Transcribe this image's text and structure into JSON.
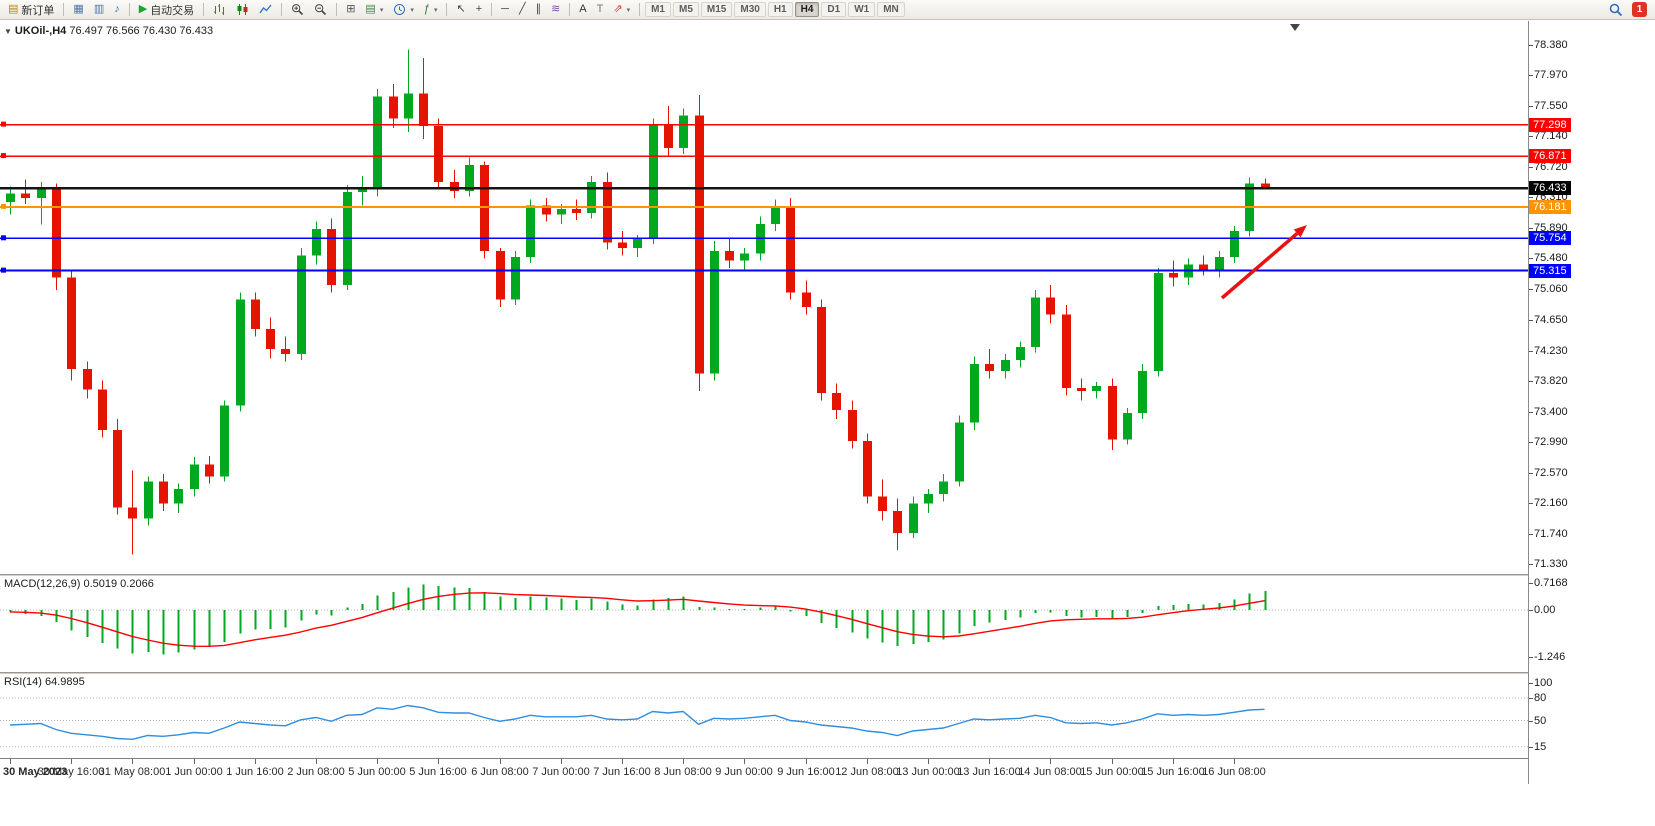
{
  "colors": {
    "up": "#00a81f",
    "down": "#e51400",
    "macd_hist": "#00a81f",
    "macd_signal": "#ff0000",
    "rsi_line": "#2f8ee0",
    "arrow": "#e81212",
    "axis_text": "#1a1a1a"
  },
  "toolbar": {
    "groups": [
      {
        "items": [
          {
            "name": "new-order-button",
            "glyph": "▤",
            "glyph_color": "#b8860b",
            "label": "新订单"
          }
        ]
      },
      {
        "items": [
          {
            "name": "market-watch-button",
            "glyph": "▦",
            "glyph_color": "#4f75a3"
          },
          {
            "name": "navigator-button",
            "glyph": "▥",
            "glyph_color": "#4f75a3"
          },
          {
            "name": "sound-button",
            "glyph": "♪",
            "glyph_color": "#2f6fbe"
          }
        ]
      },
      {
        "items": [
          {
            "name": "auto-trading-button",
            "glyph": "▶",
            "glyph_color": "#17a62e",
            "label": "自动交易"
          }
        ]
      },
      {
        "items": [
          {
            "name": "bar-chart-type-button",
            "icon": "bars"
          },
          {
            "name": "candlestick-chart-type-button",
            "icon": "candles"
          },
          {
            "name": "line-chart-type-button",
            "icon": "linechart"
          }
        ]
      },
      {
        "items": [
          {
            "name": "zoom-in-button",
            "icon": "zoom-in"
          },
          {
            "name": "zoom-out-button",
            "icon": "zoom-out"
          }
        ]
      },
      {
        "items": [
          {
            "name": "tile-windows-button",
            "glyph": "⊞",
            "glyph_color": "#555555"
          },
          {
            "name": "new-chart-button",
            "glyph": "▤",
            "glyph_color": "#3c8c3c",
            "dropdown": true
          },
          {
            "name": "period-clock-button",
            "icon": "clock",
            "dropdown": true
          },
          {
            "name": "indicators-button",
            "glyph": "ƒ",
            "glyph_color": "#2e7d32",
            "dropdown": true
          }
        ]
      },
      {
        "items": [
          {
            "name": "cursor-button",
            "glyph": "↖",
            "glyph_color": "#444444"
          },
          {
            "name": "crosshair-button",
            "glyph": "+",
            "glyph_color": "#444444"
          }
        ]
      },
      {
        "items": [
          {
            "name": "horizontal-line-button",
            "glyph": "─",
            "glyph_color": "#444444"
          },
          {
            "name": "trendline-button",
            "glyph": "╱",
            "glyph_color": "#444444"
          },
          {
            "name": "channel-button",
            "glyph": "∥",
            "glyph_color": "#444444"
          },
          {
            "name": "fibonacci-button",
            "glyph": "≋",
            "glyph_color": "#7a4fa3"
          }
        ]
      },
      {
        "items": [
          {
            "name": "text-button",
            "glyph": "A",
            "glyph_color": "#333333"
          },
          {
            "name": "text-label-button",
            "glyph": "T",
            "glyph_color": "#777777"
          },
          {
            "name": "arrows-button",
            "glyph": "⇗",
            "glyph_color": "#c23b3b",
            "dropdown": true
          }
        ]
      }
    ],
    "timeframes": [
      "M1",
      "M5",
      "M15",
      "M30",
      "H1",
      "H4",
      "D1",
      "W1",
      "MN"
    ],
    "active_timeframe": "H4",
    "notification_badge": "1"
  },
  "chart": {
    "symbol_period": "UKOil-,H4",
    "ohlc_text": "76.497 76.566 76.430 76.433",
    "expand_glyph": "▼"
  },
  "chart_data": {
    "type": "candlestick",
    "symbol": "UKOil-",
    "timeframe": "H4",
    "current_price": "76.433",
    "price_range": [
      71.194,
      78.706
    ],
    "y_axis_ticks": [
      "78.380",
      "77.970",
      "77.550",
      "77.140",
      "76.720",
      "76.310",
      "75.890",
      "75.480",
      "75.060",
      "74.650",
      "74.230",
      "73.820",
      "73.400",
      "72.990",
      "72.570",
      "72.160",
      "71.740",
      "71.330"
    ],
    "x_labels": [
      "30 May 2023",
      "30 May 16:00",
      "31 May 08:00",
      "1 Jun 00:00",
      "1 Jun 16:00",
      "2 Jun 08:00",
      "5 Jun 00:00",
      "5 Jun 16:00",
      "6 Jun 08:00",
      "7 Jun 00:00",
      "7 Jun 16:00",
      "8 Jun 08:00",
      "9 Jun 00:00",
      "9 Jun 16:00",
      "12 Jun 08:00",
      "13 Jun 00:00",
      "13 Jun 16:00",
      "14 Jun 08:00",
      "15 Jun 00:00",
      "15 Jun 16:00",
      "16 Jun 08:00"
    ],
    "levels": [
      {
        "price": 77.298,
        "label": "77.298",
        "color": "#ff0000",
        "width": 1.6,
        "handle": true
      },
      {
        "price": 76.871,
        "label": "76.871",
        "color": "#ff0000",
        "width": 1.6,
        "handle": true
      },
      {
        "price": 76.433,
        "label": "76.433",
        "color": "#151515",
        "width": 2.4,
        "handle": false
      },
      {
        "price": 76.181,
        "label": "76.181",
        "color": "#ff9400",
        "width": 2.0,
        "handle": true
      },
      {
        "price": 75.754,
        "label": "75.754",
        "color": "#0000ff",
        "width": 1.8,
        "handle": true
      },
      {
        "price": 75.315,
        "label": "75.315",
        "color": "#0000ff",
        "width": 1.8,
        "handle": true
      }
    ],
    "annotations": [
      {
        "type": "arrow",
        "color": "#e81212",
        "from": [
          1222,
          277
        ],
        "to": [
          1307,
          204
        ],
        "width": 3.5
      }
    ],
    "ohlc": [
      [
        76.25,
        76.46,
        76.08,
        76.36
      ],
      [
        76.36,
        76.55,
        76.22,
        76.3
      ],
      [
        76.3,
        76.52,
        75.94,
        76.45
      ],
      [
        76.45,
        76.5,
        75.05,
        75.22
      ],
      [
        75.22,
        75.3,
        73.82,
        73.98
      ],
      [
        73.98,
        74.08,
        73.58,
        73.7
      ],
      [
        73.7,
        73.82,
        73.05,
        73.15
      ],
      [
        73.15,
        73.3,
        72.0,
        72.1
      ],
      [
        72.1,
        72.6,
        71.46,
        71.95
      ],
      [
        71.95,
        72.52,
        71.85,
        72.45
      ],
      [
        72.45,
        72.55,
        72.05,
        72.15
      ],
      [
        72.15,
        72.42,
        72.02,
        72.35
      ],
      [
        72.35,
        72.78,
        72.25,
        72.68
      ],
      [
        72.68,
        72.8,
        72.42,
        72.52
      ],
      [
        72.52,
        73.55,
        72.45,
        73.48
      ],
      [
        73.48,
        75.02,
        73.4,
        74.92
      ],
      [
        74.92,
        75.02,
        74.42,
        74.52
      ],
      [
        74.52,
        74.68,
        74.12,
        74.25
      ],
      [
        74.25,
        74.42,
        74.08,
        74.18
      ],
      [
        74.18,
        75.62,
        74.1,
        75.52
      ],
      [
        75.52,
        75.98,
        75.4,
        75.88
      ],
      [
        75.88,
        76.02,
        75.02,
        75.12
      ],
      [
        75.12,
        76.48,
        75.05,
        76.38
      ],
      [
        76.38,
        76.6,
        76.2,
        76.42
      ],
      [
        76.42,
        77.78,
        76.32,
        77.68
      ],
      [
        77.68,
        77.85,
        77.25,
        77.38
      ],
      [
        77.38,
        78.32,
        77.2,
        77.72
      ],
      [
        77.72,
        78.2,
        77.1,
        77.28
      ],
      [
        77.28,
        77.38,
        76.42,
        76.52
      ],
      [
        76.52,
        76.68,
        76.3,
        76.4
      ],
      [
        76.4,
        76.85,
        76.32,
        76.75
      ],
      [
        76.75,
        76.8,
        75.48,
        75.58
      ],
      [
        75.58,
        75.62,
        74.82,
        74.92
      ],
      [
        74.92,
        75.58,
        74.85,
        75.5
      ],
      [
        75.5,
        76.28,
        75.42,
        76.2
      ],
      [
        76.2,
        76.3,
        75.98,
        76.08
      ],
      [
        76.08,
        76.22,
        75.95,
        76.15
      ],
      [
        76.15,
        76.28,
        76.0,
        76.1
      ],
      [
        76.1,
        76.6,
        76.02,
        76.52
      ],
      [
        76.52,
        76.65,
        75.6,
        75.7
      ],
      [
        75.7,
        75.85,
        75.52,
        75.62
      ],
      [
        75.62,
        75.8,
        75.5,
        75.75
      ],
      [
        75.75,
        77.38,
        75.68,
        77.3
      ],
      [
        77.3,
        77.55,
        76.88,
        76.98
      ],
      [
        76.98,
        77.52,
        76.9,
        77.42
      ],
      [
        77.42,
        77.7,
        73.68,
        73.92
      ],
      [
        73.92,
        75.72,
        73.82,
        75.58
      ],
      [
        75.58,
        75.75,
        75.35,
        75.45
      ],
      [
        75.45,
        75.62,
        75.32,
        75.55
      ],
      [
        75.55,
        76.05,
        75.45,
        75.95
      ],
      [
        75.95,
        76.28,
        75.85,
        76.18
      ],
      [
        76.18,
        76.3,
        74.92,
        75.02
      ],
      [
        75.02,
        75.18,
        74.72,
        74.82
      ],
      [
        74.82,
        74.92,
        73.55,
        73.65
      ],
      [
        73.65,
        73.78,
        73.3,
        73.42
      ],
      [
        73.42,
        73.55,
        72.9,
        73.0
      ],
      [
        73.0,
        73.1,
        72.15,
        72.25
      ],
      [
        72.25,
        72.48,
        71.92,
        72.05
      ],
      [
        72.05,
        72.22,
        71.52,
        71.75
      ],
      [
        71.75,
        72.25,
        71.68,
        72.15
      ],
      [
        72.15,
        72.35,
        72.02,
        72.28
      ],
      [
        72.28,
        72.55,
        72.18,
        72.45
      ],
      [
        72.45,
        73.35,
        72.38,
        73.25
      ],
      [
        73.25,
        74.15,
        73.15,
        74.05
      ],
      [
        74.05,
        74.25,
        73.85,
        73.95
      ],
      [
        73.95,
        74.18,
        73.85,
        74.1
      ],
      [
        74.1,
        74.35,
        74.0,
        74.28
      ],
      [
        74.28,
        75.05,
        74.2,
        74.95
      ],
      [
        74.95,
        75.12,
        74.6,
        74.72
      ],
      [
        74.72,
        74.85,
        73.62,
        73.72
      ],
      [
        73.72,
        73.85,
        73.55,
        73.68
      ],
      [
        73.68,
        73.8,
        73.58,
        73.75
      ],
      [
        73.75,
        73.85,
        72.88,
        73.02
      ],
      [
        73.02,
        73.45,
        72.95,
        73.38
      ],
      [
        73.38,
        74.05,
        73.3,
        73.95
      ],
      [
        73.95,
        75.35,
        73.88,
        75.28
      ],
      [
        75.28,
        75.45,
        75.1,
        75.22
      ],
      [
        75.22,
        75.48,
        75.12,
        75.4
      ],
      [
        75.4,
        75.52,
        75.25,
        75.32
      ],
      [
        75.32,
        75.58,
        75.22,
        75.5
      ],
      [
        75.5,
        75.92,
        75.42,
        75.85
      ],
      [
        75.85,
        76.58,
        75.78,
        76.5
      ],
      [
        76.497,
        76.566,
        76.43,
        76.433
      ]
    ],
    "indicators": {
      "macd": {
        "label": "MACD(12,26,9) 0.5019 0.2066",
        "ticks": [
          "0.7168",
          "0.00",
          "-1.246"
        ],
        "histogram": [
          -0.05,
          -0.1,
          -0.16,
          -0.32,
          -0.55,
          -0.72,
          -0.88,
          -1.02,
          -1.15,
          -1.12,
          -1.18,
          -1.13,
          -1.05,
          -0.98,
          -0.85,
          -0.62,
          -0.52,
          -0.5,
          -0.46,
          -0.28,
          -0.12,
          -0.14,
          0.06,
          0.16,
          0.38,
          0.48,
          0.6,
          0.68,
          0.64,
          0.6,
          0.58,
          0.48,
          0.36,
          0.32,
          0.36,
          0.33,
          0.3,
          0.27,
          0.3,
          0.22,
          0.14,
          0.12,
          0.28,
          0.32,
          0.36,
          0.08,
          0.06,
          0.03,
          0.02,
          0.06,
          0.09,
          -0.04,
          -0.16,
          -0.34,
          -0.48,
          -0.6,
          -0.76,
          -0.86,
          -0.95,
          -0.9,
          -0.85,
          -0.78,
          -0.62,
          -0.42,
          -0.33,
          -0.26,
          -0.2,
          -0.08,
          -0.06,
          -0.16,
          -0.2,
          -0.18,
          -0.24,
          -0.18,
          -0.08,
          0.1,
          0.13,
          0.16,
          0.15,
          0.18,
          0.28,
          0.44,
          0.5
        ]
      },
      "rsi": {
        "label": "RSI(14) 64.9895",
        "ticks": [
          "100",
          "80",
          "50",
          "15"
        ],
        "levels": [
          80,
          50,
          15
        ],
        "values": [
          44,
          45,
          46,
          38,
          33,
          31,
          29,
          26,
          25,
          30,
          29,
          31,
          34,
          33,
          40,
          48,
          46,
          44,
          43,
          51,
          54,
          49,
          57,
          58,
          67,
          65,
          70,
          67,
          61,
          60,
          60,
          54,
          49,
          52,
          57,
          55,
          55,
          55,
          57,
          52,
          51,
          52,
          62,
          60,
          62,
          45,
          53,
          52,
          53,
          55,
          57,
          50,
          48,
          44,
          42,
          40,
          36,
          34,
          30,
          36,
          38,
          40,
          46,
          52,
          51,
          52,
          53,
          57,
          54,
          47,
          46,
          47,
          44,
          47,
          52,
          59,
          57,
          58,
          57,
          58,
          61,
          64,
          64.99
        ]
      }
    }
  }
}
